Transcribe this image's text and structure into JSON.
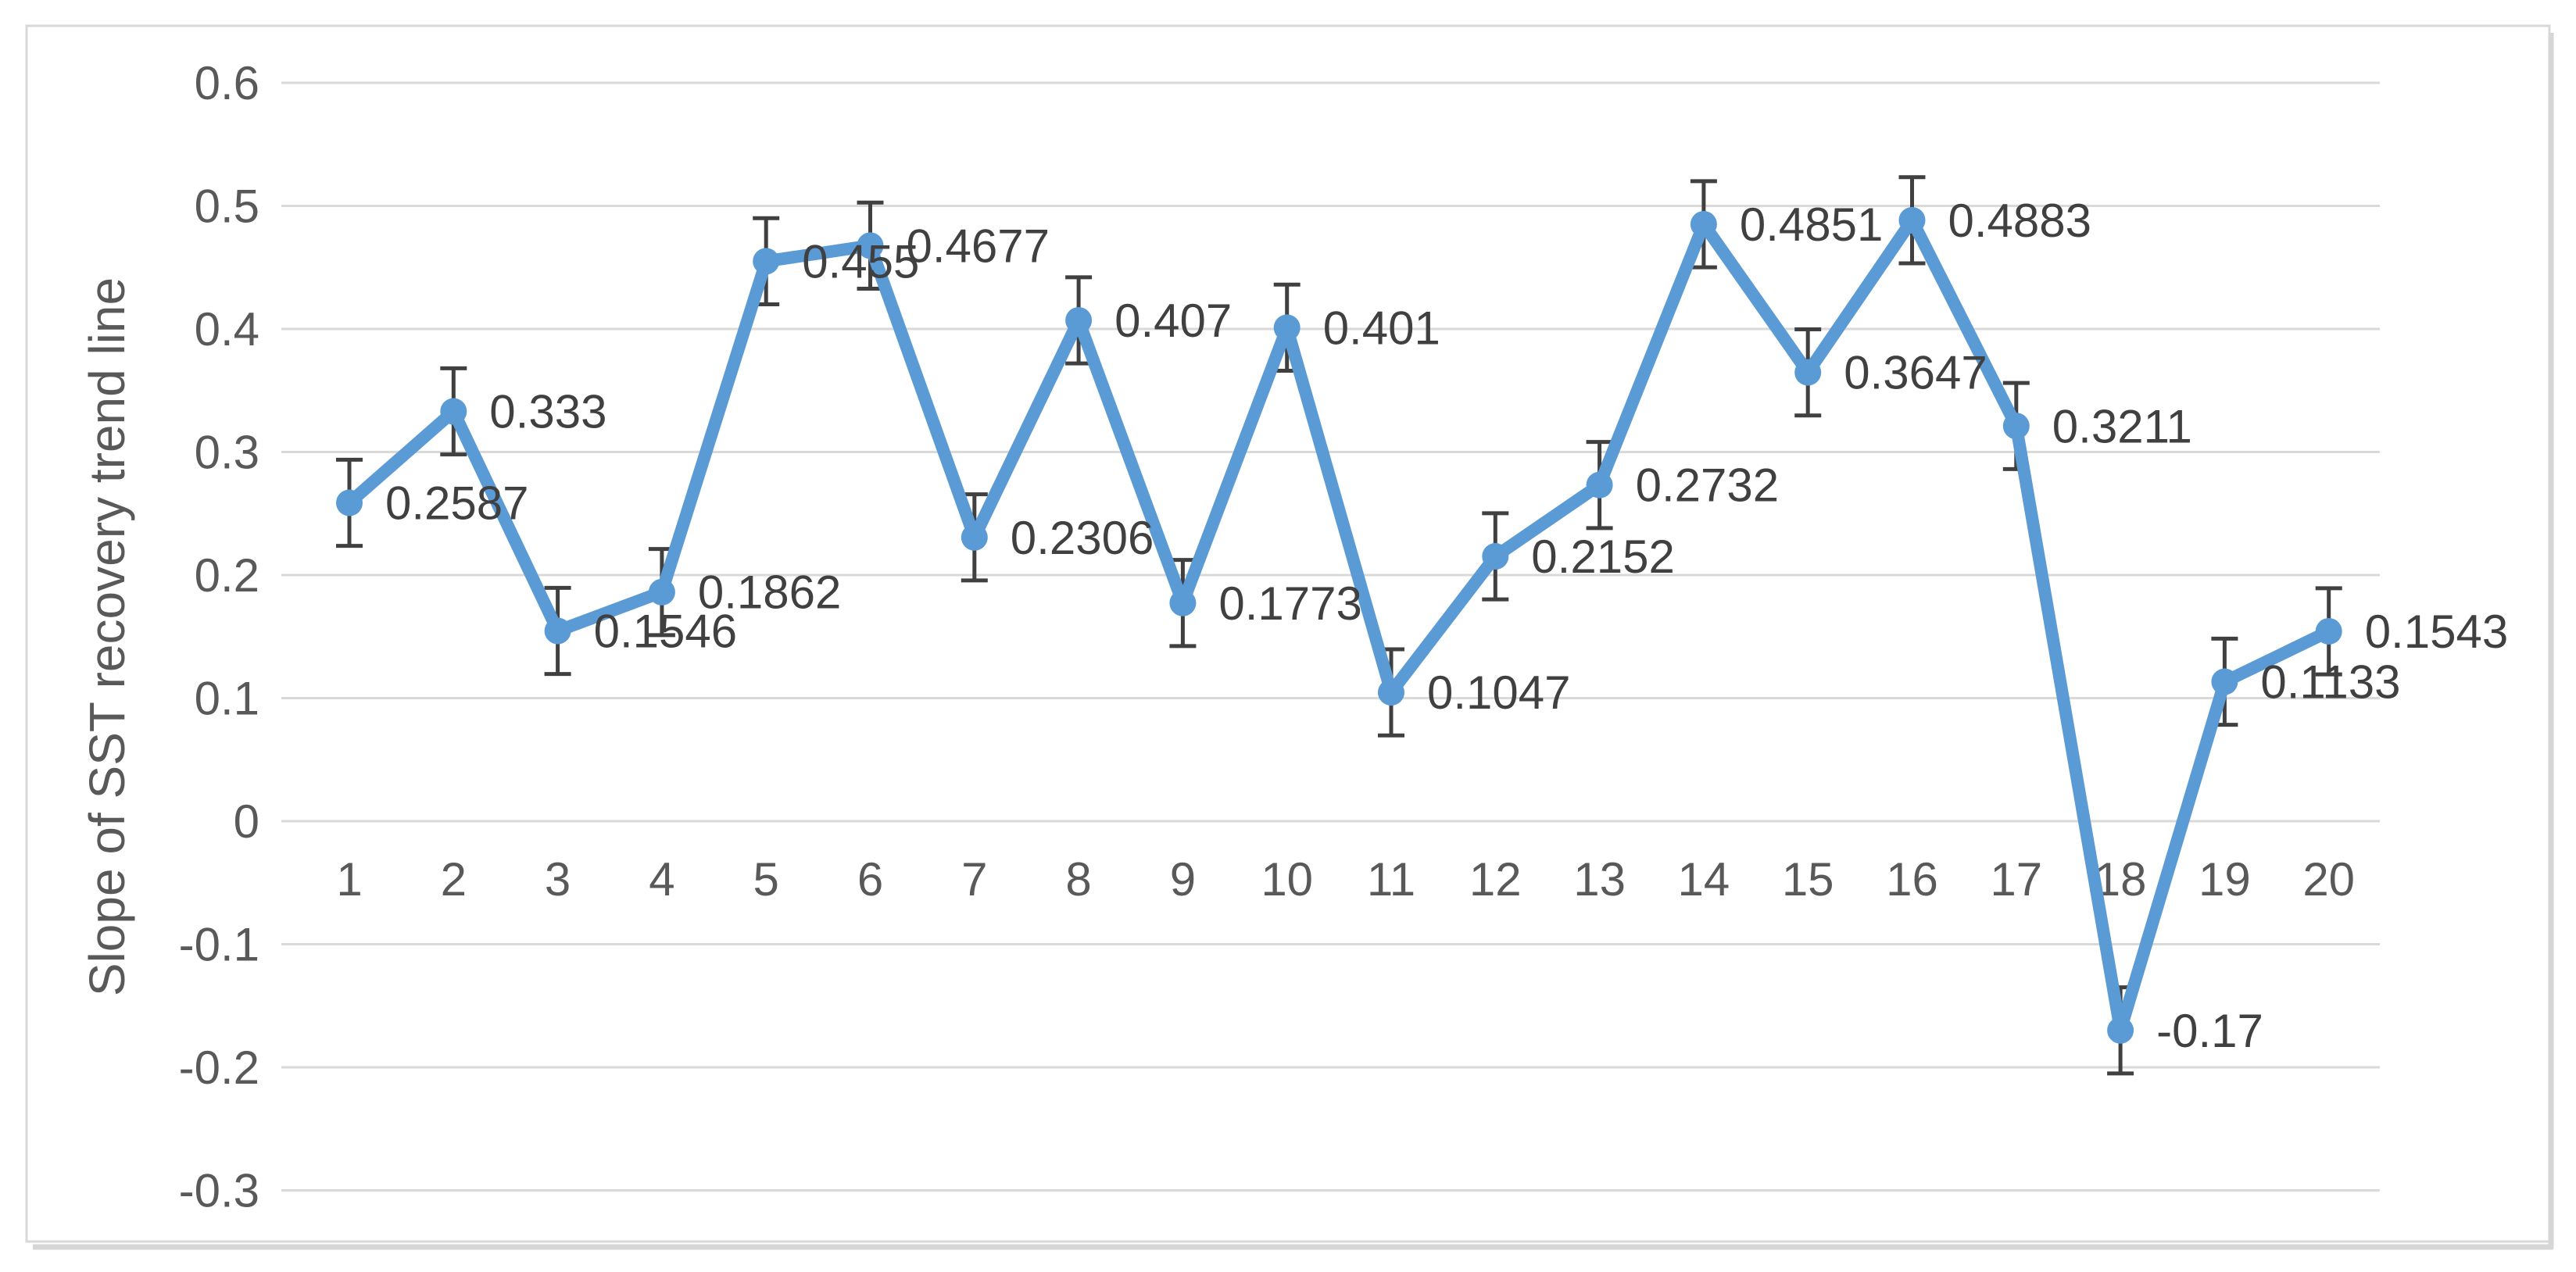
{
  "chart_data": {
    "type": "line",
    "title": "",
    "xlabel": "",
    "ylabel": "Slope of SST recovery trend line",
    "categories": [
      "1",
      "2",
      "3",
      "4",
      "5",
      "6",
      "7",
      "8",
      "9",
      "10",
      "11",
      "12",
      "13",
      "14",
      "15",
      "16",
      "17",
      "18",
      "19",
      "20"
    ],
    "series": [
      {
        "values": [
          0.2587,
          0.333,
          0.1546,
          0.1862,
          0.455,
          0.4677,
          0.2306,
          0.407,
          0.1773,
          0.401,
          0.1047,
          0.2152,
          0.2732,
          0.4851,
          0.3647,
          0.4883,
          0.3211,
          -0.17,
          0.1133,
          0.1543
        ],
        "labels": [
          "0.2587",
          "0.333",
          "0.1546",
          "0.1862",
          "0.455",
          "0.4677",
          "0.2306",
          "0.407",
          "0.1773",
          "0.401",
          "0.1047",
          "0.2152",
          "0.2732",
          "0.4851",
          "0.3647",
          "0.4883",
          "0.3211",
          "-0.17",
          "0.1133",
          "0.1543"
        ],
        "error_bar": 0.035
      }
    ],
    "ylim": [
      -0.3,
      0.6
    ],
    "ytick_step": 0.1,
    "ytick_labels": [
      "0.6",
      "0.5",
      "0.4",
      "0.3",
      "0.2",
      "0.1",
      "0",
      "-0.1",
      "-0.2",
      "-0.3"
    ],
    "grid": true,
    "legend": false,
    "markers": true,
    "error_bars": true,
    "colors": {
      "line": "#5B9BD5",
      "marker": "#5B9BD5",
      "error_bar": "#404040",
      "gridline": "#D9D9D9",
      "frame_border": "#D9D9D9",
      "frame_shadow": "#D6D6D6",
      "axis_label": "#595959",
      "data_label": "#404040",
      "background": "#FFFFFF"
    }
  }
}
